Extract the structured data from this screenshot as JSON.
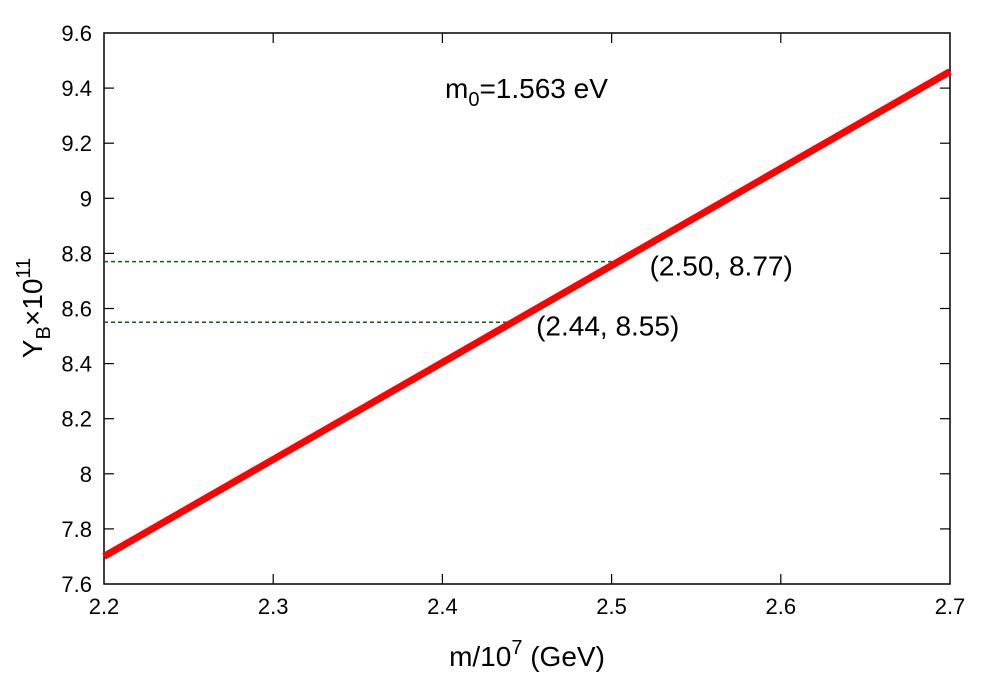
{
  "chart_data": {
    "type": "line",
    "annotation_main": {
      "base": "m",
      "sub": "0",
      "rest": "=1.563 eV"
    },
    "xlabel": {
      "pre": "m/10",
      "sup": "7",
      "post": " (GeV)"
    },
    "ylabel": {
      "base": "Y",
      "sub": "B",
      "mid": "×10",
      "sup": "11"
    },
    "xlim": [
      2.2,
      2.7
    ],
    "ylim": [
      7.6,
      9.6
    ],
    "x_ticks": [
      2.2,
      2.3,
      2.4,
      2.5,
      2.6,
      2.7
    ],
    "x_tick_labels": [
      "2.2",
      "2.3",
      "2.4",
      "2.5",
      "2.6",
      "2.7"
    ],
    "y_ticks": [
      7.6,
      7.8,
      8.0,
      8.2,
      8.4,
      8.6,
      8.8,
      9.0,
      9.2,
      9.4,
      9.6
    ],
    "y_tick_labels": [
      "7.6",
      "7.8",
      "8",
      "8.2",
      "8.4",
      "8.6",
      "8.8",
      "9",
      "9.2",
      "9.4",
      "9.6"
    ],
    "grid": false,
    "series": [
      {
        "color": "#ff0000",
        "x": [
          2.2,
          2.7
        ],
        "y": [
          7.7,
          9.46
        ]
      }
    ],
    "reference_lines": [
      {
        "y": 8.77,
        "x_end": 2.5,
        "color": "#006400"
      },
      {
        "y": 8.55,
        "x_end": 2.44,
        "color": "#006400"
      }
    ],
    "point_labels": [
      {
        "text": "(2.50, 8.77)",
        "x": 2.5,
        "y": 8.77
      },
      {
        "text": "(2.44, 8.55)",
        "x": 2.44,
        "y": 8.55
      }
    ]
  }
}
